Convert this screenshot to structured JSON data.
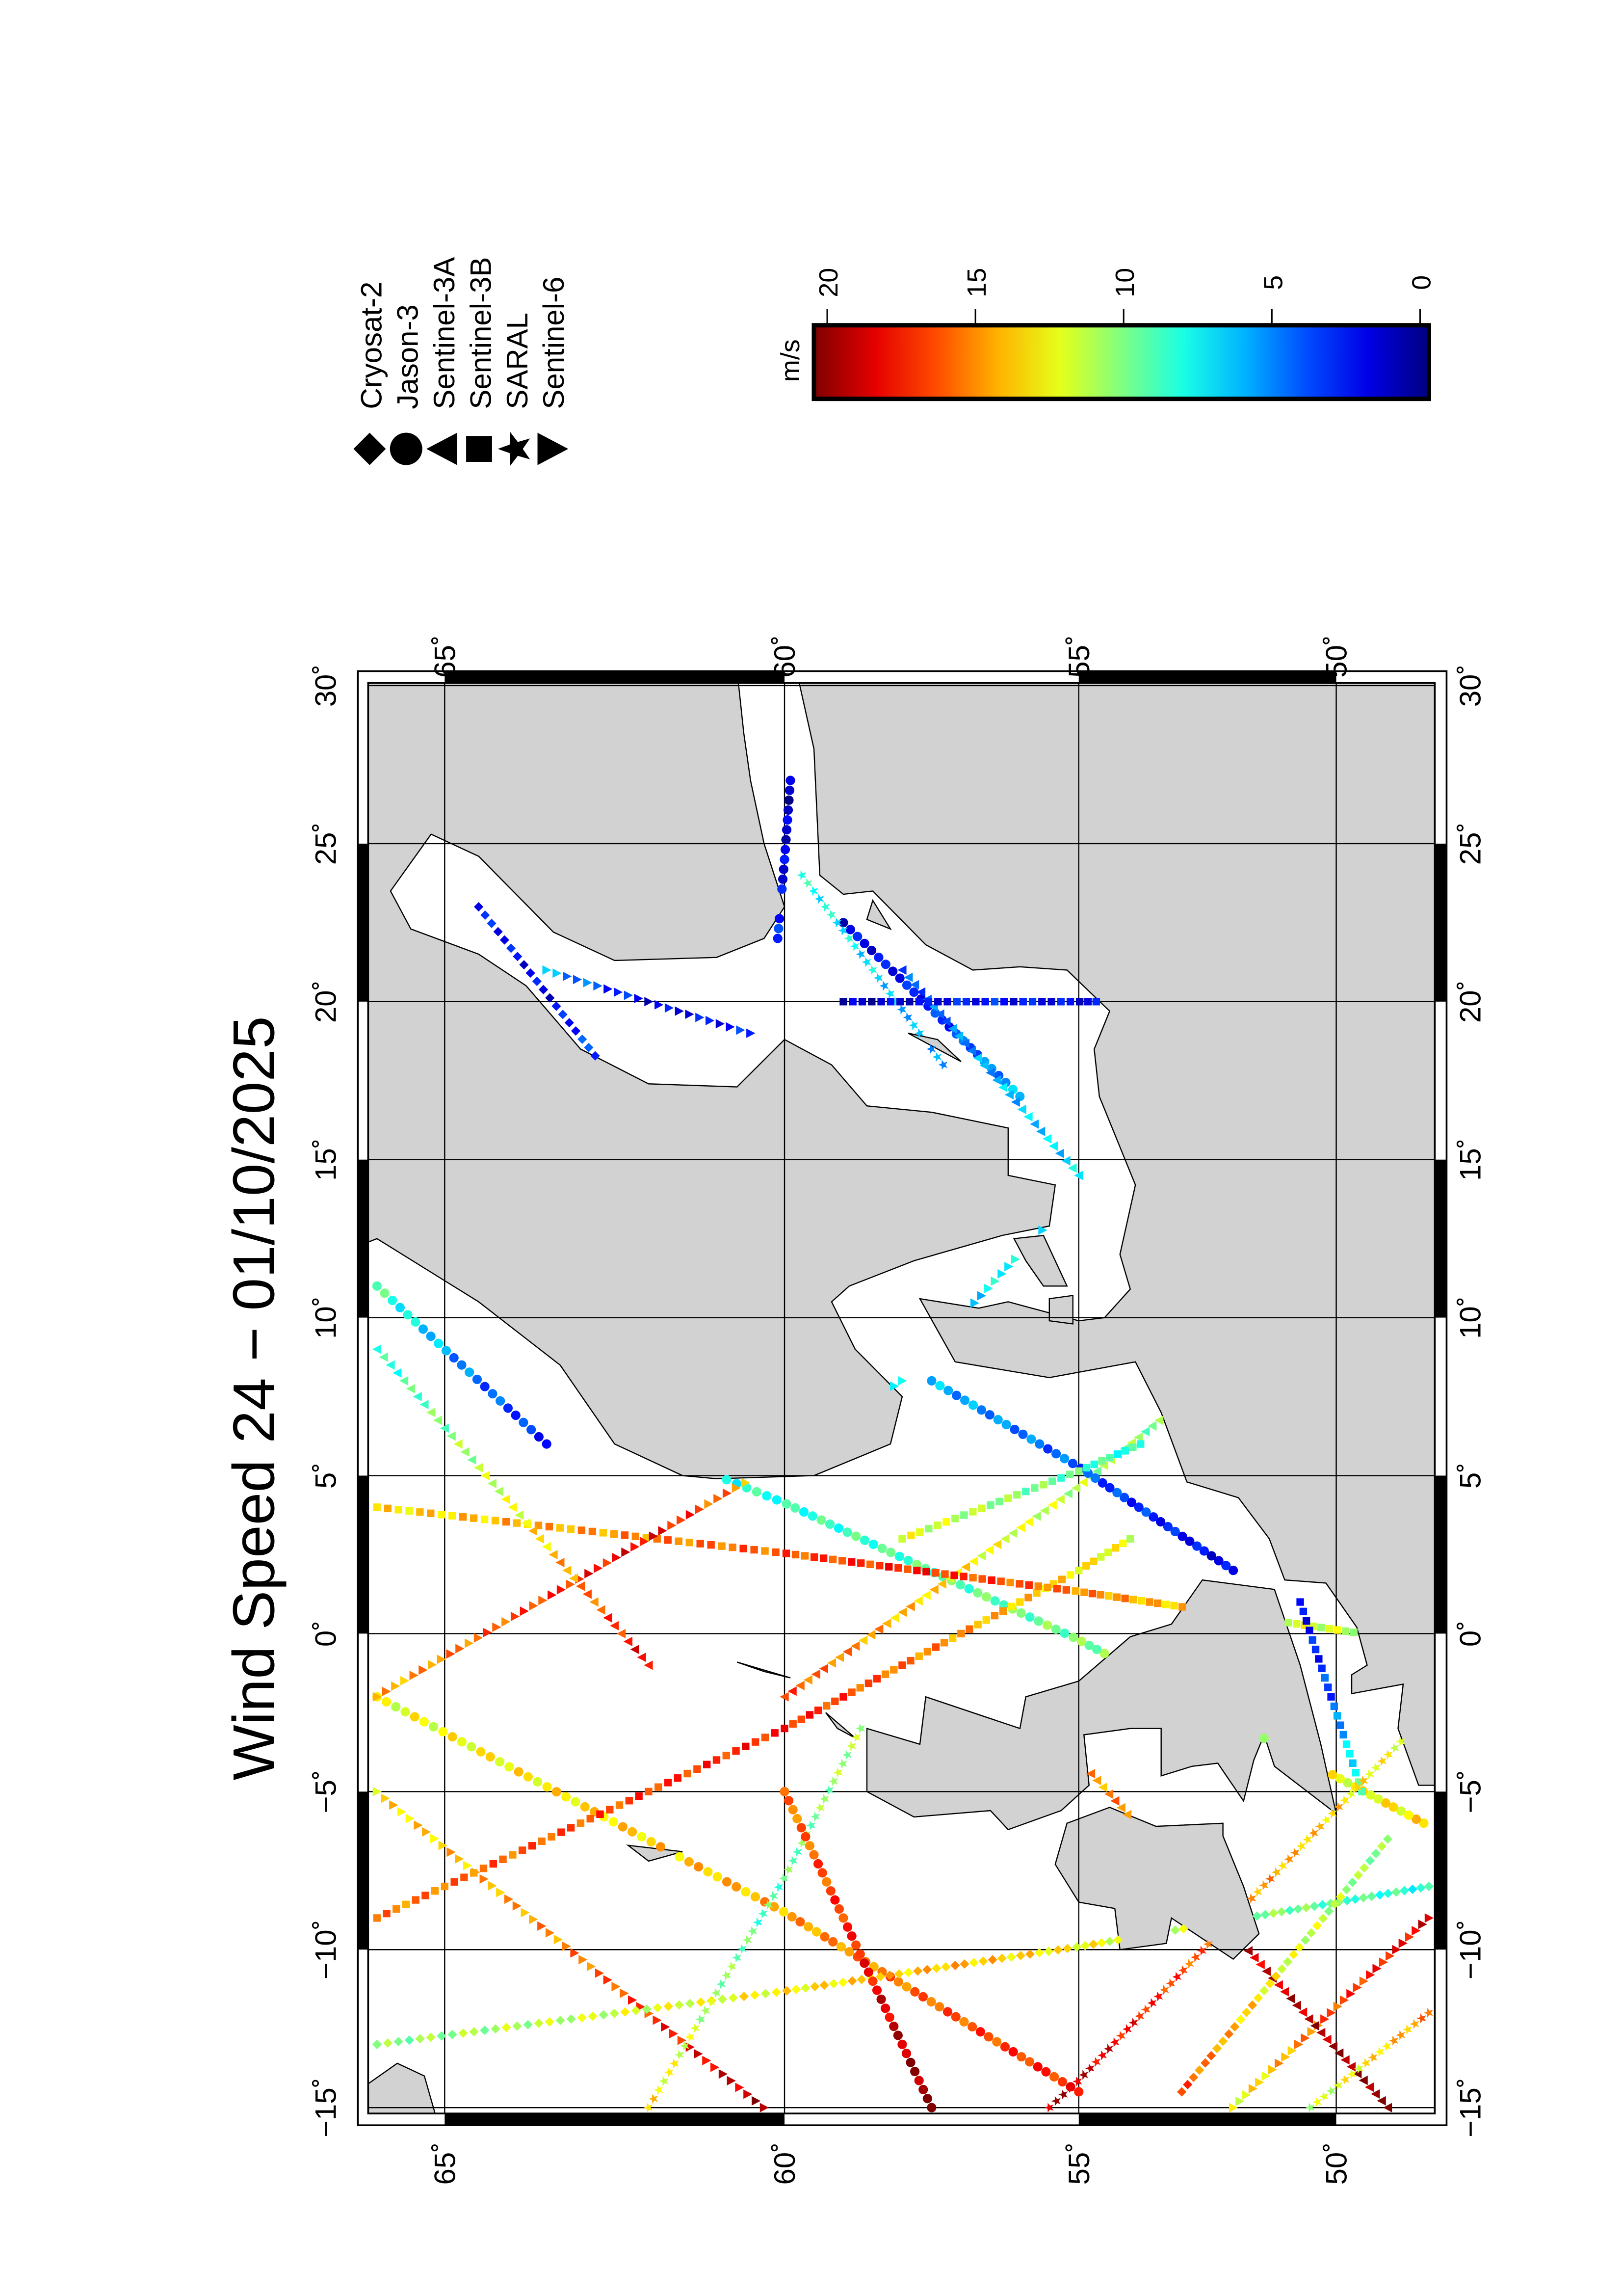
{
  "title": "Wind Speed 24 − 01/10/2025",
  "colorbar": {
    "unit": "m/s",
    "min": 0,
    "max": 20,
    "ticks": [
      "20",
      "15",
      "10",
      "5",
      "0"
    ],
    "tick_values": [
      20,
      15,
      10,
      5,
      0
    ],
    "colormap": "jet",
    "colors": [
      "#00008f",
      "#0000ff",
      "#00ffff",
      "#ffff00",
      "#ff0000",
      "#800000"
    ]
  },
  "legend": [
    {
      "name": "Cryosat-2",
      "symbol": "diamond"
    },
    {
      "name": "Jason-3",
      "symbol": "circle"
    },
    {
      "name": "Sentinel-3A",
      "symbol": "triangle-left"
    },
    {
      "name": "Sentinel-3B",
      "symbol": "square"
    },
    {
      "name": "SARAL",
      "symbol": "star"
    },
    {
      "name": "Sentinel-6",
      "symbol": "triangle-right"
    }
  ],
  "map": {
    "lon_range": [
      -15,
      30
    ],
    "lat_range": [
      48.1,
      66.1
    ],
    "lon_ticks": [
      -15,
      -10,
      -5,
      0,
      5,
      10,
      15,
      20,
      25,
      30
    ],
    "lon_labels": [
      "−15˚",
      "−10˚",
      "−5˚",
      "0˚",
      "5˚",
      "10˚",
      "15˚",
      "20˚",
      "25˚",
      "30˚"
    ],
    "lat_ticks": [
      50,
      55,
      60,
      65
    ],
    "lat_labels": [
      "50˚",
      "55˚",
      "60˚",
      "65˚"
    ],
    "land_color": "#d2d2d2",
    "water_color": "#ffffff",
    "grid": true,
    "land": [
      [
        [
          12,
          66.6
        ],
        [
          12.5,
          66
        ],
        [
          10.5,
          64.5
        ],
        [
          8.5,
          63.3
        ],
        [
          6,
          62.5
        ],
        [
          5,
          61.5
        ],
        [
          4.9,
          61
        ],
        [
          5,
          59.5
        ],
        [
          6,
          58.2
        ],
        [
          7.5,
          58
        ],
        [
          9,
          58.8
        ],
        [
          10.5,
          59.2
        ],
        [
          11,
          58.9
        ],
        [
          11.8,
          57.8
        ],
        [
          12.6,
          56.3
        ],
        [
          12.9,
          55.5
        ],
        [
          14.2,
          55.4
        ],
        [
          14.5,
          56.2
        ],
        [
          16,
          56.2
        ],
        [
          16.5,
          57.5
        ],
        [
          16.7,
          58.6
        ],
        [
          18,
          59.2
        ],
        [
          18.8,
          60
        ],
        [
          17.3,
          60.7
        ],
        [
          17.4,
          62
        ],
        [
          18.5,
          63
        ],
        [
          20.5,
          63.8
        ],
        [
          21.5,
          64.5
        ],
        [
          22.3,
          65.5
        ],
        [
          23.5,
          65.8
        ],
        [
          25.3,
          65.2
        ],
        [
          24.6,
          64.5
        ],
        [
          22.2,
          63.4
        ],
        [
          21.3,
          62.5
        ],
        [
          21.4,
          61
        ],
        [
          22,
          60.3
        ],
        [
          23,
          60
        ],
        [
          25,
          60.3
        ],
        [
          27,
          60.5
        ],
        [
          28.5,
          60.6
        ],
        [
          30.5,
          60.7
        ],
        [
          30.5,
          66.6
        ]
      ],
      [
        [
          30.5,
          59.8
        ],
        [
          28,
          59.5
        ],
        [
          24,
          59.4
        ],
        [
          23.4,
          59
        ],
        [
          23.5,
          58.5
        ],
        [
          21.8,
          57.6
        ],
        [
          21,
          56.8
        ],
        [
          21.1,
          56
        ],
        [
          21,
          55.2
        ],
        [
          19.7,
          54.4
        ],
        [
          18.5,
          54.7
        ],
        [
          17,
          54.6
        ],
        [
          14.2,
          53.9
        ],
        [
          12,
          54.2
        ],
        [
          10.9,
          54
        ],
        [
          10,
          54.5
        ],
        [
          9.9,
          55
        ],
        [
          10.5,
          56.2
        ],
        [
          10.3,
          56.7
        ],
        [
          10.6,
          57.7
        ],
        [
          8.6,
          57.1
        ],
        [
          8.1,
          55.5
        ],
        [
          8.6,
          53.9
        ],
        [
          7,
          53.4
        ],
        [
          4.8,
          52.9
        ],
        [
          4.3,
          51.9
        ],
        [
          3,
          51.3
        ],
        [
          1.7,
          51
        ],
        [
          1.6,
          50.2
        ],
        [
          0.2,
          49.6
        ],
        [
          -1,
          49.4
        ],
        [
          -1.3,
          49.7
        ],
        [
          -1.9,
          49.7
        ],
        [
          -1.6,
          48.7
        ],
        [
          -3,
          48.8
        ],
        [
          -4.8,
          48.4
        ],
        [
          -4.8,
          47.5
        ],
        [
          30.5,
          47.5
        ]
      ],
      [
        [
          11,
          55.2
        ],
        [
          12.6,
          55.6
        ],
        [
          12.5,
          56.1
        ],
        [
          11.8,
          55.9
        ],
        [
          11,
          55.6
        ]
      ],
      [
        [
          9.8,
          55.1
        ],
        [
          10.7,
          55.1
        ],
        [
          10.6,
          55.5
        ],
        [
          9.9,
          55.5
        ]
      ],
      [
        [
          18.1,
          57
        ],
        [
          19,
          57.9
        ],
        [
          18.8,
          57.4
        ]
      ],
      [
        [
          22.3,
          58.2
        ],
        [
          23.2,
          58.5
        ],
        [
          22.6,
          58.6
        ]
      ],
      [
        [
          -5.7,
          50
        ],
        [
          -3.5,
          50.3
        ],
        [
          -1,
          50.7
        ],
        [
          1.4,
          51.2
        ],
        [
          1.7,
          52.6
        ],
        [
          0.3,
          53.2
        ],
        [
          -0.1,
          54
        ],
        [
          -1.5,
          55
        ],
        [
          -2,
          55.9
        ],
        [
          -3,
          56
        ],
        [
          -2,
          57.6
        ],
        [
          -3.5,
          57.7
        ],
        [
          -3,
          58.6
        ],
        [
          -5,
          58.6
        ],
        [
          -5.8,
          57.8
        ],
        [
          -5.6,
          56.5
        ],
        [
          -6.2,
          56.2
        ],
        [
          -5.6,
          55.3
        ],
        [
          -4.8,
          54.8
        ],
        [
          -3.2,
          54.9
        ],
        [
          -3,
          54
        ],
        [
          -3,
          53.4
        ],
        [
          -4.5,
          53.4
        ],
        [
          -4.2,
          52.8
        ],
        [
          -4.1,
          52.3
        ],
        [
          -5.3,
          51.8
        ],
        [
          -4,
          51.6
        ],
        [
          -3.2,
          51.4
        ],
        [
          -4.2,
          51.2
        ]
      ],
      [
        [
          -6,
          52.2
        ],
        [
          -6.1,
          53.5
        ],
        [
          -5.5,
          54.4
        ],
        [
          -6,
          55.2
        ],
        [
          -7.3,
          55.4
        ],
        [
          -8.5,
          55
        ],
        [
          -8.7,
          54.3
        ],
        [
          -10,
          54.2
        ],
        [
          -9.8,
          53.3
        ],
        [
          -9,
          53.2
        ],
        [
          -10.3,
          52
        ],
        [
          -9.5,
          51.5
        ],
        [
          -8,
          51.8
        ],
        [
          -6.4,
          52.2
        ]
      ],
      [
        [
          -7.2,
          62
        ],
        [
          -6.7,
          62.3
        ],
        [
          -6.9,
          61.5
        ]
      ],
      [
        [
          -1.4,
          59.9
        ],
        [
          -0.9,
          60.7
        ],
        [
          -1.2,
          60.3
        ]
      ],
      [
        [
          -3.3,
          58.8
        ],
        [
          -2.5,
          59.3
        ],
        [
          -3,
          59.1
        ]
      ],
      [
        [
          -15.5,
          65.1
        ],
        [
          -14,
          65.3
        ],
        [
          -13.6,
          65.7
        ],
        [
          -14.5,
          66.3
        ],
        [
          -15.5,
          66.3
        ]
      ]
    ]
  },
  "tracks": [
    {
      "sat": "Jason-3",
      "from": [
        -14.5,
        55
      ],
      "to": [
        -2,
        66
      ],
      "wind": [
        17,
        14,
        12
      ]
    },
    {
      "sat": "Jason-3",
      "from": [
        -6,
        48.3
      ],
      "to": [
        5,
        61
      ],
      "wind": [
        13,
        10,
        8
      ]
    },
    {
      "sat": "Sentinel-6",
      "from": [
        -15,
        60.3
      ],
      "to": [
        -5,
        66
      ],
      "wind": [
        19,
        15,
        13
      ]
    },
    {
      "sat": "Sentinel-6",
      "from": [
        -9,
        48.2
      ],
      "to": [
        -15,
        52
      ],
      "wind": [
        18,
        16,
        12
      ]
    },
    {
      "sat": "Cryosat-2",
      "from": [
        -13,
        66
      ],
      "to": [
        -8,
        48.2
      ],
      "wind": [
        10,
        14,
        8
      ]
    },
    {
      "sat": "Sentinel-3A",
      "from": [
        -15,
        49
      ],
      "to": [
        -4,
        55
      ],
      "wind": [
        20,
        18,
        14
      ]
    },
    {
      "sat": "Sentinel-3A",
      "from": [
        -2,
        60
      ],
      "to": [
        8,
        52.5
      ],
      "wind": [
        16,
        12,
        9
      ]
    },
    {
      "sat": "Sentinel-3B",
      "from": [
        -9,
        66
      ],
      "to": [
        3,
        54
      ],
      "wind": [
        15,
        17,
        12
      ]
    },
    {
      "sat": "SARAL",
      "from": [
        -15,
        62
      ],
      "to": [
        -3,
        58.7
      ],
      "wind": [
        13,
        9,
        11
      ]
    },
    {
      "sat": "Sentinel-3B",
      "from": [
        4,
        66
      ],
      "to": [
        0,
        49.5
      ],
      "wind": [
        13,
        17,
        11
      ]
    },
    {
      "sat": "Jason-3",
      "from": [
        -15,
        57.5
      ],
      "to": [
        -5,
        60
      ],
      "wind": [
        20,
        17,
        15
      ]
    },
    {
      "sat": "Sentinel-6",
      "from": [
        -2,
        66
      ],
      "to": [
        8,
        58
      ],
      "wind": [
        14,
        18,
        8
      ]
    },
    {
      "sat": "Cryosat-2",
      "from": [
        -14.5,
        53
      ],
      "to": [
        -6.5,
        49
      ],
      "wind": [
        16,
        12,
        10
      ]
    },
    {
      "sat": "SARAL",
      "from": [
        -12,
        48.2
      ],
      "to": [
        -15,
        50.5
      ],
      "wind": [
        15,
        13,
        11
      ]
    },
    {
      "sat": "Jason-3",
      "from": [
        11,
        66
      ],
      "to": [
        6,
        63.5
      ],
      "wind": [
        9,
        5,
        3
      ]
    },
    {
      "sat": "Sentinel-3A",
      "from": [
        9,
        66
      ],
      "to": [
        -1,
        62
      ],
      "wind": [
        8,
        12,
        18
      ]
    },
    {
      "sat": "Jason-3",
      "from": [
        2,
        52
      ],
      "to": [
        8,
        57.5
      ],
      "wind": [
        2,
        4,
        6
      ]
    },
    {
      "sat": "Sentinel-3B",
      "from": [
        6,
        53.8
      ],
      "to": [
        3,
        58
      ],
      "wind": [
        8,
        10,
        12
      ]
    },
    {
      "sat": "Jason-3",
      "from": [
        17,
        56
      ],
      "to": [
        22.5,
        59
      ],
      "wind": [
        6,
        3,
        2
      ]
    },
    {
      "sat": "Sentinel-3A",
      "from": [
        14.5,
        55
      ],
      "to": [
        21,
        58
      ],
      "wind": [
        7,
        6,
        4
      ]
    },
    {
      "sat": "Sentinel-6",
      "from": [
        19,
        60.5
      ],
      "to": [
        21,
        63.5
      ],
      "wind": [
        3,
        2,
        6
      ]
    },
    {
      "sat": "SARAL",
      "from": [
        24,
        59.7
      ],
      "to": [
        18,
        57.3
      ],
      "wind": [
        8,
        7,
        5
      ]
    },
    {
      "sat": "Sentinel-3B",
      "from": [
        20,
        54.5
      ],
      "to": [
        20,
        59
      ],
      "wind": [
        2,
        3,
        1
      ]
    },
    {
      "sat": "Cryosat-2",
      "from": [
        17.5,
        62.5
      ],
      "to": [
        23,
        64.5
      ],
      "wind": [
        5,
        2,
        3
      ]
    },
    {
      "sat": "Sentinel-6",
      "from": [
        10,
        57
      ],
      "to": [
        13,
        55.5
      ],
      "wind": [
        6,
        8,
        5
      ]
    },
    {
      "sat": "Sentinel-3B",
      "from": [
        -5,
        49.5
      ],
      "to": [
        1,
        50.7
      ],
      "wind": [
        9,
        4,
        2
      ]
    },
    {
      "sat": "Jason-3",
      "from": [
        22,
        60.1
      ],
      "to": [
        27,
        59.9
      ],
      "wind": [
        3,
        2,
        1
      ]
    },
    {
      "sat": "SARAL",
      "from": [
        -3,
        48.5
      ],
      "to": [
        -15,
        55.5
      ],
      "wind": [
        12,
        15,
        19
      ]
    }
  ]
}
